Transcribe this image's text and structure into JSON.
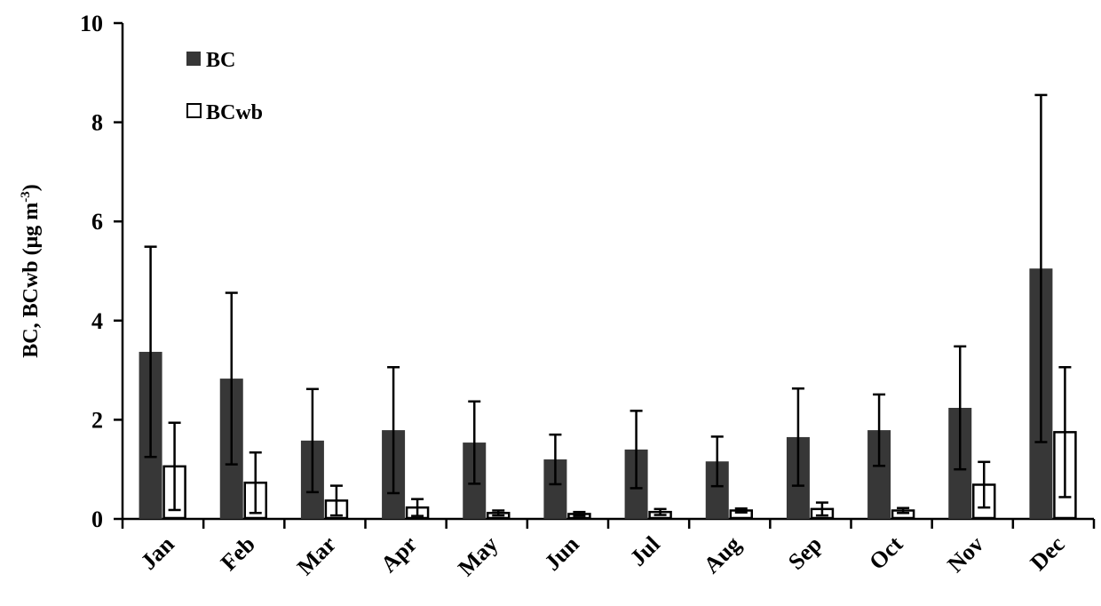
{
  "chart_data": {
    "type": "bar",
    "title": "",
    "xlabel": "",
    "ylabel": "BC, BCwb (μg m⁻³)",
    "ylabel_parts": {
      "main": "BC, BCwb (μg m",
      "sup": "-3",
      "close": ")"
    },
    "ylim": [
      0,
      10
    ],
    "yticks": [
      0,
      2,
      4,
      6,
      8,
      10
    ],
    "grid": false,
    "legend_position": "top-left",
    "categories": [
      "Jan",
      "Feb",
      "Mar",
      "Apr",
      "May",
      "Jun",
      "Jul",
      "Aug",
      "Sep",
      "Oct",
      "Nov",
      "Dec"
    ],
    "series": [
      {
        "name": "BC",
        "color": "#373737",
        "values": [
          3.37,
          2.83,
          1.58,
          1.79,
          1.54,
          1.2,
          1.4,
          1.16,
          1.65,
          1.79,
          2.24,
          5.05
        ],
        "errors": [
          2.12,
          1.73,
          1.04,
          1.27,
          0.83,
          0.5,
          0.78,
          0.5,
          0.98,
          0.72,
          1.24,
          3.5
        ]
      },
      {
        "name": "BCwb",
        "color": "#ffffff",
        "values": [
          1.06,
          0.73,
          0.37,
          0.23,
          0.12,
          0.1,
          0.14,
          0.17,
          0.2,
          0.17,
          0.69,
          1.75
        ],
        "errors": [
          0.88,
          0.61,
          0.3,
          0.17,
          0.05,
          0.04,
          0.06,
          0.04,
          0.13,
          0.05,
          0.46,
          1.31
        ]
      }
    ]
  }
}
